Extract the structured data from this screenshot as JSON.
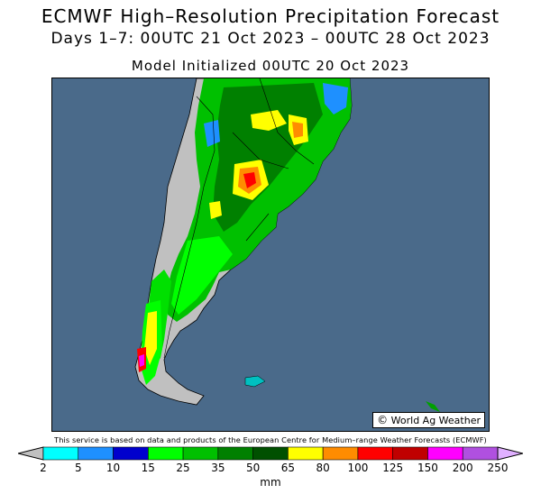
{
  "header": {
    "title": "ECMWF High–Resolution Precipitation Forecast",
    "subtitle": "Days 1–7: 00UTC 21 Oct 2023 – 00UTC 28 Oct 2023",
    "initialized": "Model Initialized 00UTC 20 Oct 2023"
  },
  "map": {
    "credit_symbol": "©",
    "credit": "World Ag Weather",
    "ocean_color": "#4a6a8a",
    "dry_land_color": "#c0c0c0"
  },
  "disclaimer": "This service is based on data and products of the European Centre for Medium–range Weather Forecasts (ECMWF)",
  "legend": {
    "unit": "mm",
    "ticks": [
      "2",
      "5",
      "10",
      "15",
      "25",
      "35",
      "50",
      "65",
      "80",
      "100",
      "125",
      "150",
      "200",
      "250"
    ],
    "colors": [
      "#00ffff",
      "#1e90ff",
      "#0000cd",
      "#00ff00",
      "#00c000",
      "#008000",
      "#005000",
      "#ffff00",
      "#ff8c00",
      "#ff0000",
      "#c00000",
      "#ff00ff",
      "#b050e0"
    ],
    "low_arrow_color": "#c0c0c0",
    "high_arrow_color": "#e0b0ff"
  }
}
